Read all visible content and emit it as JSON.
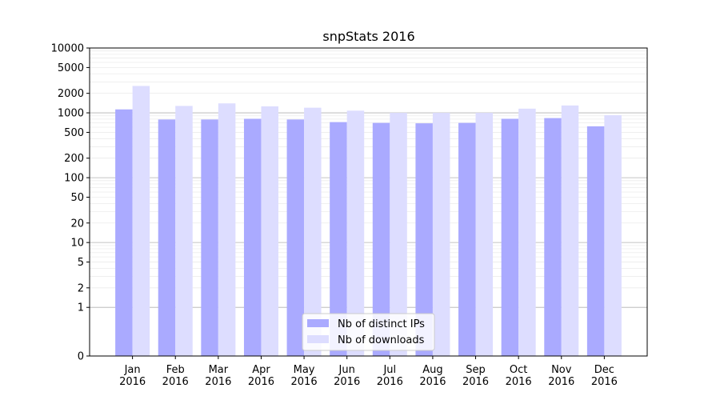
{
  "chart_data": {
    "type": "bar",
    "title": "snpStats 2016",
    "xlabel": "",
    "ylabel": "",
    "y_scale": "symlog",
    "ylim": [
      0,
      10000
    ],
    "grid": "horizontal, major and minor",
    "categories": [
      "Jan\n2016",
      "Feb\n2016",
      "Mar\n2016",
      "Apr\n2016",
      "May\n2016",
      "Jun\n2016",
      "Jul\n2016",
      "Aug\n2016",
      "Sep\n2016",
      "Oct\n2016",
      "Nov\n2016",
      "Dec\n2016"
    ],
    "y_ticks": [
      0,
      1,
      2,
      5,
      10,
      20,
      50,
      100,
      200,
      500,
      1000,
      2000,
      5000,
      10000
    ],
    "y_tick_labels": [
      "0",
      "1",
      "2",
      "5",
      "10",
      "20",
      "50",
      "100",
      "200",
      "500",
      "1000",
      "2000",
      "5000",
      "10000"
    ],
    "series": [
      {
        "name": "Nb of distinct IPs",
        "color": "#aaaaff",
        "values": [
          1130,
          790,
          790,
          810,
          790,
          720,
          700,
          690,
          700,
          810,
          830,
          620
        ]
      },
      {
        "name": "Nb of downloads",
        "color": "#ddddff",
        "values": [
          2600,
          1280,
          1400,
          1260,
          1200,
          1080,
          1000,
          1000,
          1000,
          1160,
          1300,
          920
        ]
      }
    ],
    "legend_position": "bottom-center"
  }
}
